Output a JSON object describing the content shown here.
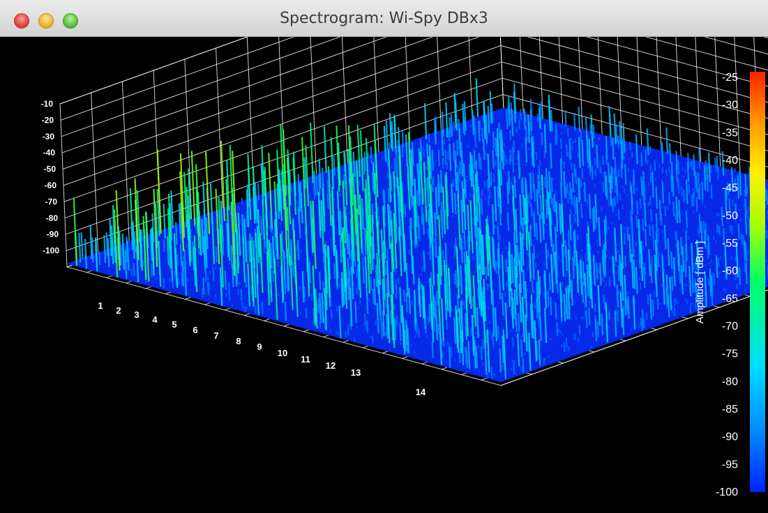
{
  "window": {
    "title": "Spectrogram: Wi-Spy DBx3"
  },
  "chart_data": {
    "type": "surface",
    "z_ticks": [
      "-10",
      "-20",
      "-30",
      "-40",
      "-50",
      "-60",
      "-70",
      "-80",
      "-90",
      "-100"
    ],
    "x_ticks": [
      "1",
      "2",
      "3",
      "4",
      "5",
      "6",
      "7",
      "8",
      "9",
      "10",
      "11",
      "12",
      "13",
      "14"
    ],
    "z_range": [
      -100,
      0
    ],
    "colorbar": {
      "label": "Amplitude [ dBm ]",
      "ticks": [
        "-25",
        "-30",
        "-35",
        "-40",
        "-45",
        "-50",
        "-55",
        "-60",
        "-65",
        "-70",
        "-75",
        "-80",
        "-85",
        "-90",
        "-95",
        "-100"
      ],
      "range": [
        -100,
        -25
      ],
      "colormap": [
        "#0022ff",
        "#0088ff",
        "#00ddff",
        "#00ff66",
        "#aaff00",
        "#ffee00",
        "#ff9900",
        "#ff2200"
      ]
    },
    "grid": true,
    "background": "#000000",
    "grid_color": "#ffffff"
  }
}
